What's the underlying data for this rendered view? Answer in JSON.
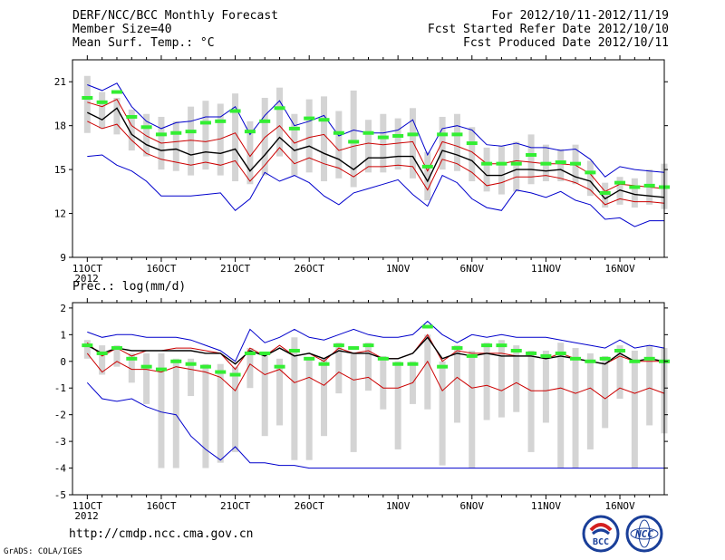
{
  "header": {
    "line1": "DERF/NCC/BCC Monthly Forecast",
    "line2": "Member Size=40",
    "line3": "Mean Surf. Temp.: °C",
    "right1": "For 2012/10/11-2012/11/19",
    "right2": "Fcst Started Refer Date 2012/10/10",
    "right3": "Fcst Produced Date 2012/10/11"
  },
  "footer": {
    "url": "http://cmdp.ncc.cma.gov.cn",
    "grads": "GrADS: COLA/IGES",
    "logo1_text": "BCC",
    "logo2_text": "NCC"
  },
  "colors": {
    "ensemble_range": "#0000cc",
    "spread_band": "#cc0000",
    "ensemble_mean": "#000000",
    "observed_mean": "#33ee33",
    "box": "#d4d4d4"
  },
  "chart_data": [
    {
      "type": "line",
      "title": "Mean Surf. Temp.: °C",
      "x_tick_labels": [
        "11OCT",
        "16OCT",
        "21OCT",
        "26OCT",
        "1NOV",
        "6NOV",
        "11NOV",
        "16NOV"
      ],
      "x_tick_days": [
        1,
        6,
        11,
        16,
        22,
        27,
        32,
        37
      ],
      "x_sub_label": "2012",
      "x_range": [
        0,
        40
      ],
      "ylim": [
        9,
        22.5
      ],
      "y_ticks": [
        9,
        12,
        15,
        18,
        21
      ],
      "series": [
        {
          "name": "max",
          "values": [
            20.8,
            20.4,
            20.9,
            19.3,
            18.3,
            17.8,
            18.2,
            18.3,
            18.6,
            18.6,
            19.3,
            17.4,
            18.7,
            19.7,
            18.0,
            18.3,
            18.7,
            17.3,
            17.7,
            17.5,
            17.5,
            17.7,
            18.4,
            16.0,
            17.8,
            18.0,
            17.7,
            16.7,
            16.6,
            16.8,
            16.5,
            16.5,
            16.3,
            16.4,
            15.7,
            14.5,
            15.2,
            15.0,
            14.9,
            14.8
          ]
        },
        {
          "name": "upper",
          "values": [
            19.6,
            19.3,
            19.8,
            18.0,
            17.3,
            16.8,
            16.9,
            17.0,
            16.9,
            17.1,
            17.5,
            15.9,
            17.2,
            18.0,
            16.8,
            17.2,
            17.4,
            16.3,
            16.6,
            16.8,
            16.7,
            16.8,
            16.9,
            14.9,
            16.9,
            16.6,
            16.2,
            15.4,
            15.4,
            15.6,
            15.5,
            15.4,
            15.4,
            15.3,
            14.7,
            13.5,
            14.0,
            13.9,
            13.8,
            13.7
          ]
        },
        {
          "name": "mean",
          "values": [
            18.9,
            18.4,
            19.2,
            17.4,
            16.7,
            16.3,
            16.4,
            16.0,
            16.2,
            16.1,
            16.4,
            14.9,
            16.0,
            17.2,
            16.3,
            16.6,
            16.1,
            15.7,
            15.0,
            15.8,
            15.8,
            15.9,
            15.9,
            14.2,
            16.3,
            16.0,
            15.6,
            14.6,
            14.6,
            15.0,
            15.0,
            14.9,
            15.0,
            14.5,
            14.2,
            13.0,
            13.6,
            13.3,
            13.2,
            13.1
          ]
        },
        {
          "name": "lower",
          "values": [
            18.3,
            17.8,
            18.1,
            17.0,
            16.1,
            15.7,
            15.5,
            15.3,
            15.5,
            15.3,
            15.6,
            14.2,
            15.3,
            16.5,
            15.4,
            15.8,
            15.4,
            15.1,
            14.5,
            15.2,
            15.2,
            15.3,
            15.2,
            13.6,
            15.7,
            15.4,
            14.8,
            13.9,
            14.1,
            14.5,
            14.5,
            14.6,
            14.4,
            14.1,
            13.6,
            12.6,
            13.0,
            12.8,
            12.8,
            12.7
          ]
        },
        {
          "name": "min",
          "values": [
            15.9,
            16.0,
            15.3,
            14.9,
            14.2,
            13.2,
            13.2,
            13.2,
            13.3,
            13.4,
            12.2,
            13.0,
            14.8,
            14.2,
            14.6,
            14.1,
            13.2,
            12.6,
            13.4,
            13.7,
            14.0,
            14.3,
            13.3,
            12.5,
            14.6,
            14.1,
            13.0,
            12.4,
            12.2,
            13.6,
            13.4,
            13.1,
            13.5,
            12.9,
            12.6,
            11.6,
            11.7,
            11.1,
            11.5,
            11.5
          ]
        },
        {
          "name": "observed",
          "values": [
            19.9,
            19.6,
            20.3,
            18.6,
            17.9,
            17.4,
            17.5,
            17.6,
            18.2,
            18.3,
            19.0,
            17.6,
            18.3,
            19.2,
            17.8,
            18.5,
            18.4,
            17.5,
            16.9,
            17.5,
            17.2,
            17.3,
            17.4,
            15.2,
            17.4,
            17.4,
            16.8,
            15.4,
            15.4,
            15.4,
            16.0,
            15.4,
            15.5,
            15.4,
            14.8,
            13.4,
            14.1,
            13.8,
            13.9,
            13.8
          ]
        }
      ],
      "box_high": [
        21.4,
        20.3,
        19.9,
        19.1,
        18.8,
        18.6,
        18.3,
        19.3,
        19.7,
        19.5,
        20.2,
        18.3,
        19.9,
        20.6,
        18.8,
        19.8,
        20.0,
        19.0,
        20.4,
        18.4,
        18.8,
        18.5,
        19.2,
        16.2,
        18.6,
        18.8,
        17.9,
        16.5,
        16.6,
        16.9,
        17.4,
        16.7,
        16.4,
        16.7,
        15.6,
        14.1,
        14.5,
        14.4,
        15.0,
        15.4
      ],
      "box_low": [
        17.5,
        17.8,
        17.4,
        16.3,
        15.9,
        15.0,
        14.9,
        14.6,
        15.0,
        14.6,
        14.2,
        14.0,
        14.6,
        15.9,
        14.6,
        14.8,
        14.2,
        14.4,
        13.8,
        14.8,
        14.8,
        15.0,
        14.4,
        12.9,
        15.0,
        14.9,
        14.2,
        13.5,
        13.3,
        13.5,
        14.0,
        14.2,
        14.2,
        14.0,
        13.2,
        12.4,
        12.6,
        12.4,
        12.6,
        12.3
      ]
    },
    {
      "type": "line",
      "title": "Prec.: log(mm/d)",
      "x_tick_labels": [
        "11OCT",
        "16OCT",
        "21OCT",
        "26OCT",
        "1NOV",
        "6NOV",
        "11NOV",
        "16NOV"
      ],
      "x_tick_days": [
        1,
        6,
        11,
        16,
        22,
        27,
        32,
        37
      ],
      "x_sub_label": "2012",
      "x_range": [
        0,
        40
      ],
      "ylim": [
        -5,
        2.2
      ],
      "y_ticks": [
        -5,
        -4,
        -3,
        -2,
        -1,
        0,
        1,
        2
      ],
      "series": [
        {
          "name": "max",
          "values": [
            1.1,
            0.9,
            1.0,
            1.0,
            0.9,
            0.9,
            0.9,
            0.8,
            0.6,
            0.4,
            0.0,
            1.2,
            0.7,
            0.9,
            1.2,
            0.9,
            0.8,
            1.0,
            1.2,
            1.0,
            0.9,
            0.9,
            1.0,
            1.5,
            1.0,
            0.7,
            1.0,
            0.9,
            1.0,
            0.9,
            0.9,
            0.9,
            0.8,
            0.7,
            0.6,
            0.5,
            0.8,
            0.5,
            0.6,
            0.5
          ]
        },
        {
          "name": "upper",
          "values": [
            0.7,
            0.2,
            0.5,
            0.2,
            0.4,
            0.4,
            0.5,
            0.5,
            0.4,
            0.3,
            -0.3,
            0.5,
            0.2,
            0.6,
            0.2,
            0.3,
            0.0,
            0.5,
            0.3,
            0.4,
            0.1,
            0.1,
            0.3,
            1.0,
            0.0,
            0.4,
            0.3,
            0.3,
            0.3,
            0.2,
            0.2,
            0.1,
            0.3,
            0.1,
            0.0,
            -0.1,
            0.2,
            0.0,
            0.0,
            0.0
          ]
        },
        {
          "name": "mean",
          "values": [
            0.6,
            0.3,
            0.5,
            0.4,
            0.4,
            0.4,
            0.4,
            0.4,
            0.3,
            0.3,
            -0.1,
            0.4,
            0.2,
            0.5,
            0.2,
            0.3,
            0.1,
            0.4,
            0.3,
            0.3,
            0.1,
            0.1,
            0.3,
            0.9,
            0.1,
            0.3,
            0.2,
            0.3,
            0.2,
            0.2,
            0.2,
            0.1,
            0.2,
            0.1,
            0.0,
            -0.1,
            0.3,
            0.0,
            0.1,
            0.0
          ]
        },
        {
          "name": "lower",
          "values": [
            0.3,
            -0.4,
            0.0,
            -0.3,
            -0.3,
            -0.4,
            -0.2,
            -0.3,
            -0.4,
            -0.6,
            -1.1,
            -0.1,
            -0.5,
            -0.3,
            -0.8,
            -0.6,
            -0.9,
            -0.4,
            -0.7,
            -0.6,
            -1.0,
            -1.0,
            -0.8,
            0.0,
            -1.1,
            -0.6,
            -1.0,
            -0.9,
            -1.1,
            -0.8,
            -1.1,
            -1.1,
            -1.0,
            -1.2,
            -1.0,
            -1.4,
            -1.0,
            -1.2,
            -1.0,
            -1.2
          ]
        },
        {
          "name": "min",
          "values": [
            -0.8,
            -1.4,
            -1.5,
            -1.4,
            -1.7,
            -1.9,
            -2.0,
            -2.8,
            -3.3,
            -3.7,
            -3.2,
            -3.8,
            -3.8,
            -3.9,
            -3.9,
            -4.0,
            -4.0,
            -4.0,
            -4.0,
            -4.0,
            -4.0,
            -4.0,
            -4.0,
            -4.0,
            -4.0,
            -4.0,
            -4.0,
            -4.0,
            -4.0,
            -4.0,
            -4.0,
            -4.0,
            -4.0,
            -4.0,
            -4.0,
            -4.0,
            -4.0,
            -4.0,
            -4.0,
            -4.0
          ]
        },
        {
          "name": "observed",
          "values": [
            0.6,
            0.3,
            0.5,
            0.1,
            -0.2,
            -0.3,
            0.0,
            -0.1,
            -0.2,
            -0.4,
            -0.5,
            0.3,
            0.3,
            -0.2,
            0.4,
            0.1,
            -0.1,
            0.6,
            0.5,
            0.6,
            0.1,
            -0.1,
            -0.1,
            1.3,
            -0.2,
            0.5,
            0.2,
            0.6,
            0.6,
            0.4,
            0.3,
            0.2,
            0.3,
            0.1,
            0.0,
            0.1,
            0.4,
            0.0,
            0.1,
            0.0
          ]
        }
      ],
      "box_high": [
        0.8,
        0.6,
        0.6,
        0.3,
        0.3,
        0.3,
        0.1,
        0.1,
        -0.1,
        -0.1,
        -0.2,
        0.5,
        0.2,
        0.1,
        0.9,
        0.1,
        0.1,
        0.7,
        0.3,
        0.7,
        0.2,
        0.0,
        0.0,
        1.0,
        0.0,
        0.6,
        0.4,
        0.7,
        0.8,
        0.6,
        0.4,
        0.4,
        0.7,
        0.5,
        0.3,
        0.2,
        0.6,
        0.4,
        0.6,
        0.5
      ],
      "box_low": [
        0.1,
        -0.5,
        -0.2,
        -0.8,
        -1.6,
        -4.0,
        -4.0,
        -1.3,
        -4.0,
        -3.8,
        -3.4,
        -1.0,
        -2.8,
        -2.4,
        -3.7,
        -3.7,
        -2.8,
        -1.2,
        -3.4,
        -1.1,
        -1.8,
        -3.3,
        -1.6,
        -1.8,
        -3.9,
        -2.3,
        -4.0,
        -2.2,
        -2.1,
        -1.9,
        -3.4,
        -2.3,
        -4.0,
        -4.0,
        -3.3,
        -2.5,
        -1.4,
        -4.0,
        -2.4,
        -2.7
      ]
    }
  ]
}
